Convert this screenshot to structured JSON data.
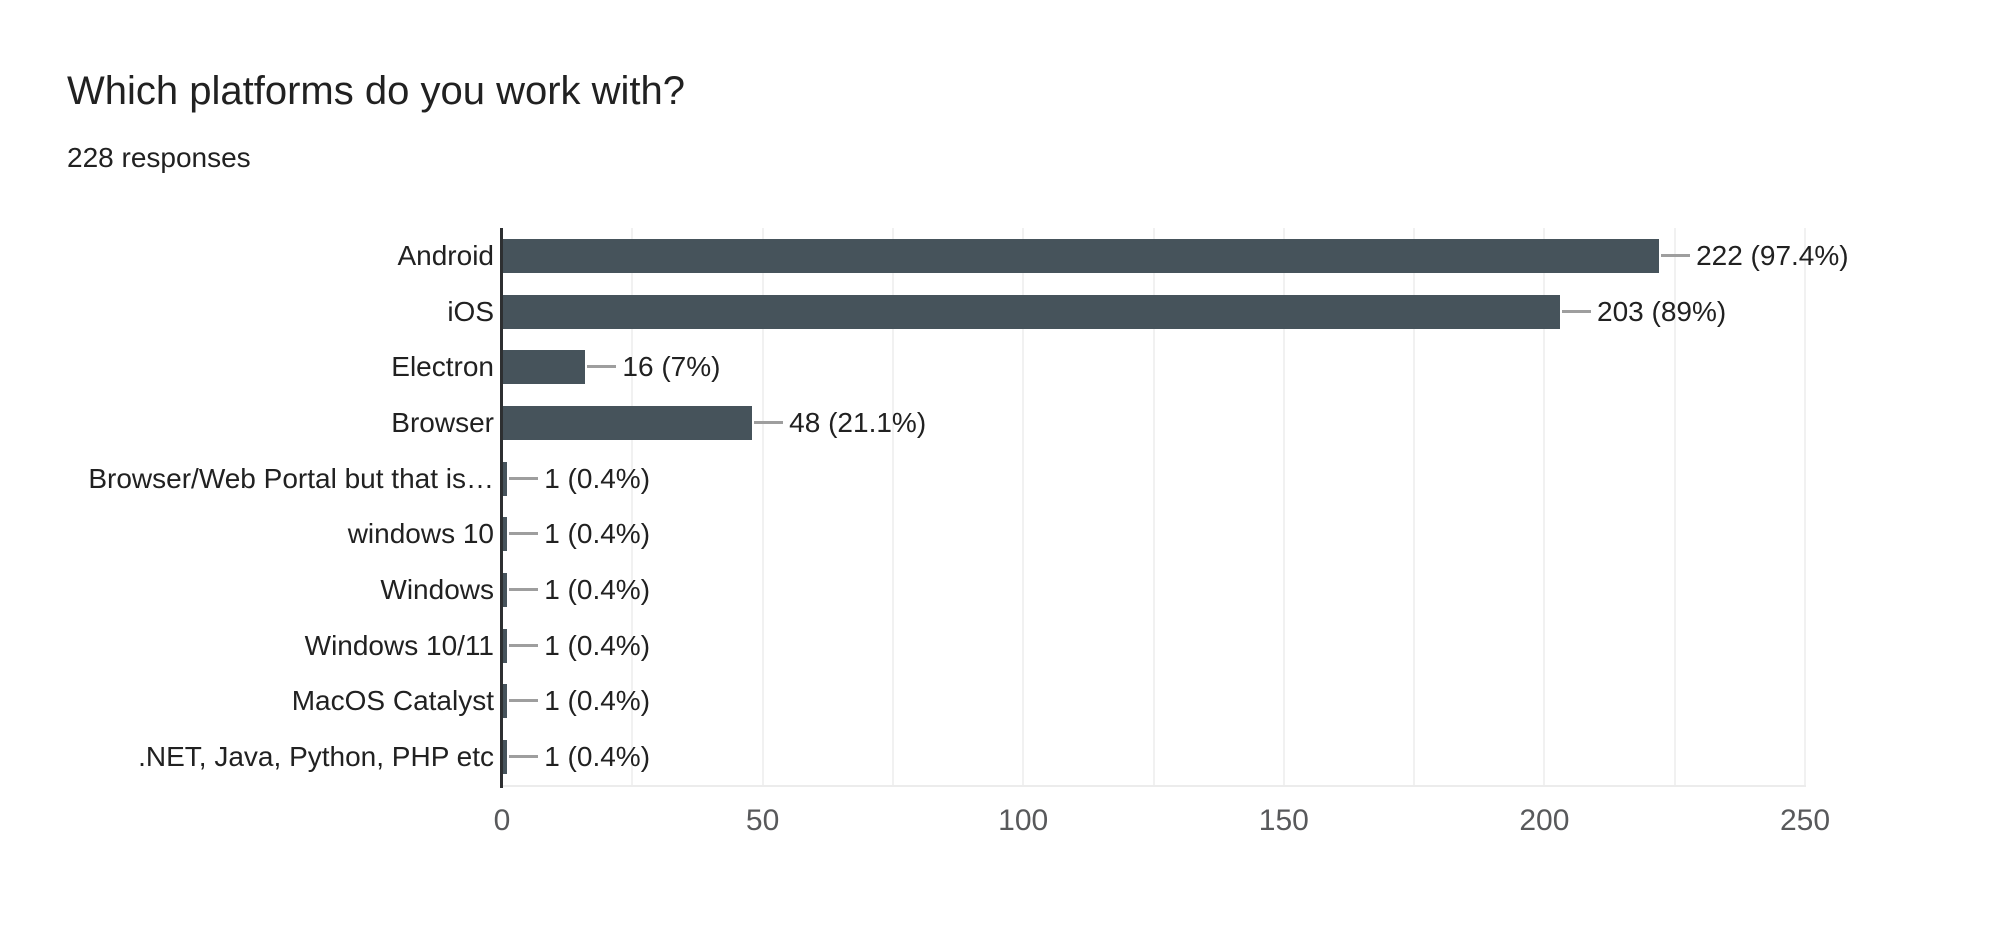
{
  "header": {
    "title": "Which platforms do you work with?",
    "subtitle": "228 responses"
  },
  "chart_data": {
    "type": "bar",
    "orientation": "horizontal",
    "title": "Which platforms do you work with?",
    "subtitle": "228 responses",
    "categories": [
      "Android",
      "iOS",
      "Electron",
      "Browser",
      "Browser/Web Portal but that is…",
      "windows 10",
      "Windows",
      "Windows 10/11",
      "MacOS Catalyst",
      ".NET, Java, Python, PHP etc"
    ],
    "values": [
      222,
      203,
      16,
      48,
      1,
      1,
      1,
      1,
      1,
      1
    ],
    "value_labels": [
      "222 (97.4%)",
      "203 (89%)",
      "16 (7%)",
      "48 (21.1%)",
      "1 (0.4%)",
      "1 (0.4%)",
      "1 (0.4%)",
      "1 (0.4%)",
      "1 (0.4%)",
      "1 (0.4%)"
    ],
    "percentages": [
      "97.4%",
      "89%",
      "7%",
      "21.1%",
      "0.4%",
      "0.4%",
      "0.4%",
      "0.4%",
      "0.4%",
      "0.4%"
    ],
    "total_responses": 228,
    "xlabel": "",
    "ylabel": "",
    "xlim": [
      0,
      250
    ],
    "x_ticks": [
      "0",
      "50",
      "100",
      "150",
      "200",
      "250"
    ],
    "x_tick_values": [
      0,
      50,
      100,
      150,
      200,
      250
    ],
    "minor_grid_step": 25,
    "grid": true,
    "legend_position": "none",
    "colors": {
      "bar": "#46535B",
      "axis_line": "#2d2f31",
      "gridline": "#f1f1f1",
      "plot_bottom_line": "#ececec",
      "callout_line": "#9e9e9e",
      "label_text": "#212121",
      "tick_text": "#58595b",
      "background": "#ffffff"
    }
  }
}
